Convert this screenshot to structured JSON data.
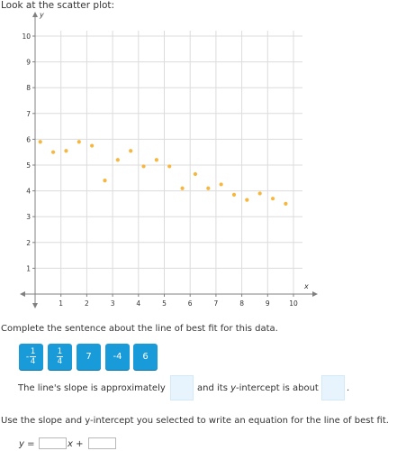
{
  "prompt": "Look at the scatter plot:",
  "chart_data": {
    "type": "scatter",
    "xlabel": "x",
    "ylabel": "y",
    "xlim": [
      0,
      10
    ],
    "ylim": [
      0,
      10
    ],
    "x_ticks": [
      "1",
      "2",
      "3",
      "4",
      "5",
      "6",
      "7",
      "8",
      "9",
      "10"
    ],
    "y_ticks": [
      "1",
      "2",
      "3",
      "4",
      "5",
      "6",
      "7",
      "8",
      "9",
      "10"
    ],
    "grid": true,
    "point_color": "#f6b73c",
    "points": [
      [
        0.2,
        5.9
      ],
      [
        0.7,
        5.5
      ],
      [
        1.2,
        5.55
      ],
      [
        1.7,
        5.9
      ],
      [
        2.2,
        5.75
      ],
      [
        2.7,
        4.4
      ],
      [
        3.2,
        5.2
      ],
      [
        3.7,
        5.55
      ],
      [
        4.2,
        4.95
      ],
      [
        4.7,
        5.2
      ],
      [
        5.2,
        4.95
      ],
      [
        5.7,
        4.1
      ],
      [
        6.2,
        4.65
      ],
      [
        6.7,
        4.1
      ],
      [
        7.2,
        4.25
      ],
      [
        7.7,
        3.85
      ],
      [
        8.2,
        3.65
      ],
      [
        8.7,
        3.9
      ],
      [
        9.2,
        3.7
      ],
      [
        9.7,
        3.5
      ]
    ]
  },
  "question": {
    "instruction": "Complete the sentence about the line of best fit for this data.",
    "tiles": [
      {
        "type": "fraction",
        "sign": "-",
        "num": "1",
        "den": "4"
      },
      {
        "type": "fraction",
        "sign": "",
        "num": "1",
        "den": "4"
      },
      {
        "type": "number",
        "label": "7"
      },
      {
        "type": "number",
        "label": "-4"
      },
      {
        "type": "number",
        "label": "6"
      }
    ],
    "sentence_part1": "The line's slope is approximately",
    "sentence_part2": "and its ",
    "sentence_var": "y",
    "sentence_part3": "-intercept is about",
    "sentence_end": ".",
    "line2": "Use the slope and y-intercept you selected to write an equation for the line of best fit.",
    "eq_y": "y",
    "eq_equals": " = ",
    "eq_x": "x",
    "eq_plus": " +"
  },
  "colors": {
    "tile": "#1a9bd9",
    "dropzone": "#e8f4fd",
    "axis": "#808080",
    "grid": "#dcdcdc"
  }
}
